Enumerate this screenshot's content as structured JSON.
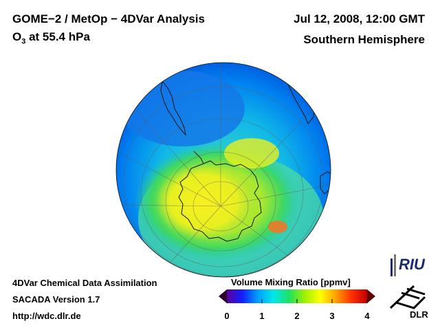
{
  "header": {
    "title": "GOME−2 / MetOp − 4DVar Analysis",
    "species_base": "O",
    "species_sub": "3",
    "level": " at 55.4 hPa",
    "date": "Jul 12, 2008, 12:00 GMT",
    "region": "Southern Hemisphere"
  },
  "footer": {
    "line1": "4DVar Chemical Data Assimilation",
    "line2": "SACADA Version 1.7",
    "line3": "http://wdc.dlr.de"
  },
  "colorbar": {
    "title": "Volume Mixing Ratio [ppmv]",
    "ticks": [
      "0",
      "1",
      "2",
      "3",
      "4"
    ],
    "range": [
      0,
      4
    ],
    "colors": [
      "#2b0030",
      "#5a00a0",
      "#1020ff",
      "#00a0ff",
      "#00e8e8",
      "#20e060",
      "#a0f000",
      "#ffff00",
      "#ffa000",
      "#ff3000",
      "#c00000",
      "#600000"
    ]
  },
  "logos": {
    "riu": "RIU",
    "dlr": "DLR"
  },
  "map": {
    "projection": "orthographic",
    "center": "South Pole",
    "field": "O3 volume mixing ratio",
    "levels_ppmv": {
      "ocean_tropics": 1.1,
      "midlatitudes": 1.6,
      "polar_ring": 2.2,
      "polar_maximum": 2.7
    }
  }
}
